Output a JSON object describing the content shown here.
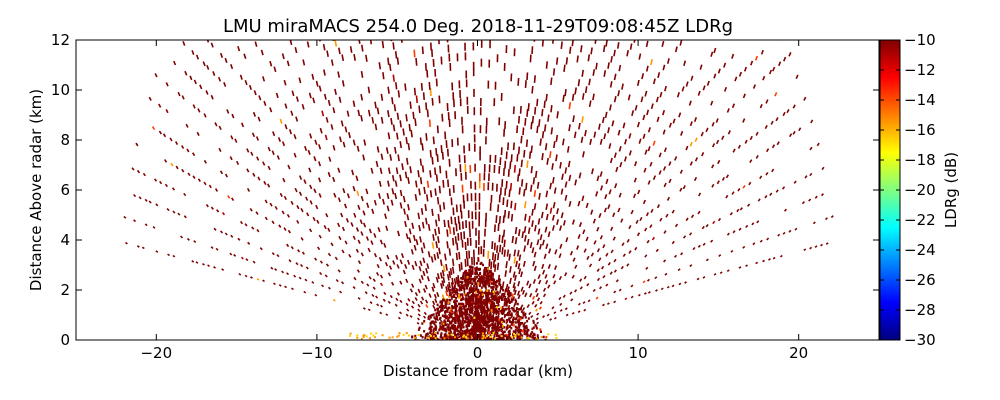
{
  "chart_data": {
    "type": "scatter",
    "title": "LMU miraMACS 254.0 Deg. 2018-11-29T09:08:45Z  LDRg",
    "xlabel": "Distance from radar (km)",
    "ylabel": "Distance Above radar  (km)",
    "xlim": [
      -25,
      25
    ],
    "ylim": [
      0,
      12
    ],
    "xticks": [
      "−20",
      "−10",
      "0",
      "10",
      "20"
    ],
    "xtick_values": [
      -20,
      -10,
      0,
      10,
      20
    ],
    "yticks": [
      "0",
      "2",
      "4",
      "6",
      "8",
      "10",
      "12"
    ],
    "ytick_values": [
      0,
      2,
      4,
      6,
      8,
      10,
      12
    ],
    "colorbar": {
      "label": "LDRg (dB)",
      "range": [
        -30,
        -10
      ],
      "ticks": [
        "−10",
        "−12",
        "−14",
        "−16",
        "−18",
        "−20",
        "−22",
        "−24",
        "−26",
        "−28",
        "−30"
      ],
      "tick_values": [
        -10,
        -12,
        -14,
        -16,
        -18,
        -20,
        -22,
        -24,
        -26,
        -28,
        -30
      ],
      "colormap": [
        "#00007f",
        "#0000ff",
        "#007fff",
        "#00ffff",
        "#7fff7f",
        "#ffff00",
        "#ff7f00",
        "#ff0000",
        "#7f0000"
      ]
    },
    "scan": {
      "elevation_min_deg": 10,
      "elevation_max_deg": 170,
      "max_range_km": 22.5,
      "dominant_value_db": -10
    }
  }
}
